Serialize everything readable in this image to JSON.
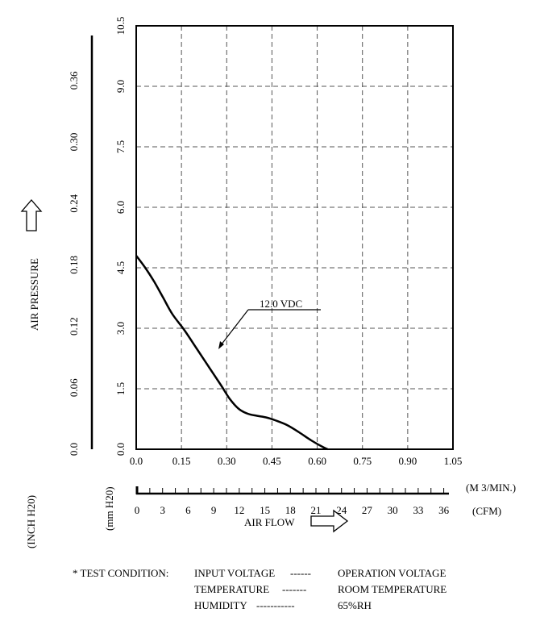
{
  "chart_data": {
    "type": "line",
    "x_flow": {
      "unit_label": "(M 3/MIN.)",
      "ticks": [
        "0.0",
        "0.15",
        "0.30",
        "0.45",
        "0.60",
        "0.75",
        "0.90",
        "1.05"
      ],
      "range": [
        0,
        1.05
      ]
    },
    "x_cfm": {
      "unit_label": "(CFM)",
      "ticks": [
        "0",
        "3",
        "6",
        "9",
        "12",
        "15",
        "18",
        "21",
        "24",
        "27",
        "30",
        "33",
        "36"
      ],
      "range": [
        0,
        37.08
      ]
    },
    "y_mm": {
      "unit_label": "(mm H20)",
      "ticks": [
        "0.0",
        "1.5",
        "3.0",
        "4.5",
        "6.0",
        "7.5",
        "9.0",
        "10.5"
      ],
      "range": [
        0,
        10.5
      ]
    },
    "y_inch": {
      "unit_label": "(INCH H20)",
      "ticks": [
        "0.0",
        "0.06",
        "0.12",
        "0.18",
        "0.24",
        "0.30",
        "0.36"
      ],
      "range": [
        0,
        0.4134
      ]
    },
    "y_title": "AIR PRESSURE",
    "x_title": "AIR FLOW",
    "grid": true,
    "series": [
      {
        "name": "12.0 VDC",
        "points": [
          [
            0.0,
            4.8
          ],
          [
            0.03,
            4.5
          ],
          [
            0.06,
            4.15
          ],
          [
            0.09,
            3.75
          ],
          [
            0.12,
            3.35
          ],
          [
            0.16,
            2.95
          ],
          [
            0.2,
            2.5
          ],
          [
            0.24,
            2.05
          ],
          [
            0.28,
            1.6
          ],
          [
            0.31,
            1.25
          ],
          [
            0.34,
            1.0
          ],
          [
            0.37,
            0.88
          ],
          [
            0.4,
            0.83
          ],
          [
            0.43,
            0.79
          ],
          [
            0.46,
            0.72
          ],
          [
            0.5,
            0.6
          ],
          [
            0.54,
            0.42
          ],
          [
            0.58,
            0.22
          ],
          [
            0.62,
            0.05
          ],
          [
            0.635,
            0.0
          ]
        ]
      }
    ]
  },
  "test_condition": {
    "prefix": "* TEST CONDITION:",
    "rows": [
      {
        "name": "INPUT VOLTAGE",
        "dashes": "------",
        "value": "OPERATION VOLTAGE"
      },
      {
        "name": "TEMPERATURE",
        "dashes": "-------",
        "value": "ROOM TEMPERATURE"
      },
      {
        "name": "HUMIDITY",
        "dashes": "-----------",
        "value": "65%RH"
      }
    ]
  },
  "colors": {
    "ink": "#000000",
    "grid": "#555555",
    "background": "#ffffff"
  }
}
